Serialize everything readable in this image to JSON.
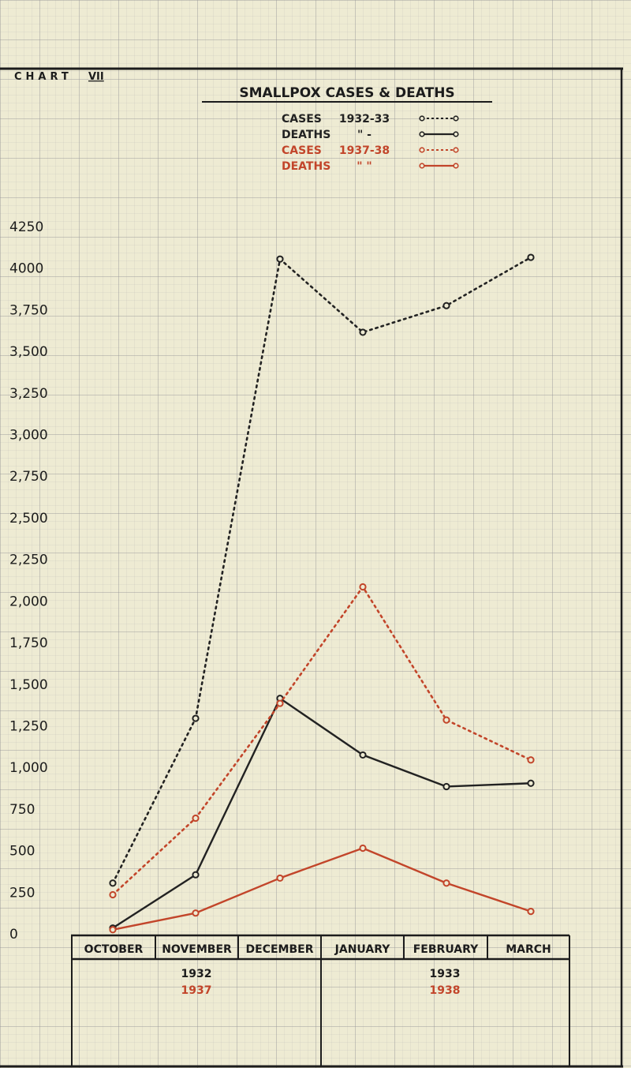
{
  "chart_data": {
    "type": "line",
    "chart_label": "CHART",
    "chart_number": "VII",
    "title": "SMALLPOX CASES & DEATHS",
    "legend": [
      {
        "label": "CASES",
        "period": "1932-33",
        "color": "#222222"
      },
      {
        "label": "DEATHS",
        "period": "\" -",
        "color": "#222222"
      },
      {
        "label": "CASES",
        "period": "1937-38",
        "color": "#c2452a"
      },
      {
        "label": "DEATHS",
        "period": "\" \"",
        "color": "#c2452a"
      }
    ],
    "y_ticks": [
      "4250",
      "4000",
      "3,750",
      "3,500",
      "3,250",
      "3,000",
      "2,750",
      "2,500",
      "2,250",
      "2,000",
      "1,750",
      "1,500",
      "1,250",
      "1,000",
      "750",
      "500",
      "250",
      "0"
    ],
    "y_tick_values": [
      4250,
      4000,
      3750,
      3500,
      3250,
      3000,
      2750,
      2500,
      2250,
      2000,
      1750,
      1500,
      1250,
      1000,
      750,
      500,
      250,
      0
    ],
    "ylim": [
      0,
      4250
    ],
    "categories": [
      "OCTOBER",
      "NOVEMBER",
      "DECEMBER",
      "JANUARY",
      "FEBRUARY",
      "MARCH"
    ],
    "year_groups": [
      {
        "year_a": "1932",
        "year_b": "1937"
      },
      {
        "year_a": "1933",
        "year_b": "1938"
      }
    ],
    "series": [
      {
        "name": "CASES 1932-33",
        "color": "#222222",
        "dashed": true,
        "values": [
          300,
          1290,
          4050,
          3610,
          3770,
          4060
        ]
      },
      {
        "name": "DEATHS 1932-33",
        "color": "#222222",
        "dashed": false,
        "values": [
          30,
          350,
          1410,
          1070,
          880,
          900
        ]
      },
      {
        "name": "CASES 1937-38",
        "color": "#c2452a",
        "dashed": true,
        "values": [
          230,
          690,
          1380,
          2080,
          1280,
          1040
        ]
      },
      {
        "name": "DEATHS 1937-38",
        "color": "#c2452a",
        "dashed": false,
        "values": [
          20,
          120,
          330,
          510,
          300,
          130
        ]
      }
    ]
  }
}
